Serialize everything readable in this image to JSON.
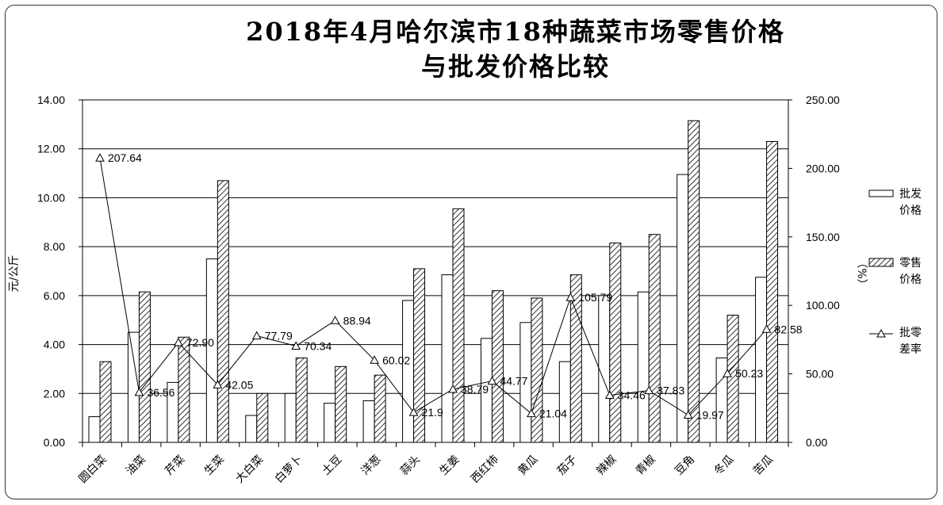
{
  "chart_data": {
    "type": "bar",
    "title": "2018年4月哈尔滨市18种蔬菜市场零售价格与批发价格比较",
    "title_lines": [
      "2018年4月哈尔滨市18种蔬菜市场零售价格",
      "与批发价格比较"
    ],
    "ylabel": "元/公斤",
    "y2label": "（%）",
    "ylim": [
      0,
      14
    ],
    "y2lim": [
      0,
      250
    ],
    "yticks": [
      "14.00",
      "12.00",
      "10.00",
      "8.00",
      "6.00",
      "4.00",
      "2.00",
      "0.00"
    ],
    "y2ticks": [
      "250.00",
      "200.00",
      "150.00",
      "100.00",
      "50.00",
      "0.00"
    ],
    "grid": "horizontal",
    "legend_position": "right",
    "categories": [
      "圆白菜",
      "油菜",
      "芹菜",
      "生菜",
      "大白菜",
      "白萝卜",
      "土豆",
      "洋葱",
      "蒜头",
      "生姜",
      "西红柿",
      "黄瓜",
      "茄子",
      "辣椒",
      "青椒",
      "豆角",
      "冬瓜",
      "苦瓜"
    ],
    "series": [
      {
        "name": "批发价格",
        "name_lines": [
          "批发",
          "价格"
        ],
        "axis": "left",
        "kind": "bar",
        "pattern": "plain",
        "values": [
          1.05,
          4.5,
          2.45,
          7.5,
          1.1,
          2.0,
          1.6,
          1.7,
          5.8,
          6.85,
          4.25,
          4.9,
          3.3,
          6.0,
          6.15,
          10.95,
          3.45,
          6.75
        ]
      },
      {
        "name": "零售价格",
        "name_lines": [
          "零售",
          "价格"
        ],
        "axis": "left",
        "kind": "bar",
        "pattern": "hatch",
        "values": [
          3.3,
          6.15,
          4.3,
          10.7,
          2.0,
          3.45,
          3.1,
          2.75,
          7.1,
          9.55,
          6.2,
          5.9,
          6.85,
          8.15,
          8.5,
          13.15,
          5.2,
          12.3
        ]
      },
      {
        "name": "批零差率",
        "name_lines": [
          "批零",
          "差率"
        ],
        "axis": "right",
        "kind": "line",
        "marker": "triangle",
        "values": [
          207.64,
          36.56,
          72.9,
          42.05,
          77.79,
          70.34,
          88.94,
          60.02,
          21.9,
          38.79,
          44.77,
          21.04,
          105.79,
          34.46,
          37.83,
          19.97,
          50.23,
          82.58
        ],
        "labels": [
          "207.64",
          "36.56",
          "72.90",
          "42.05",
          "77.79",
          "70.34",
          "88.94",
          "60.02",
          "21.9",
          "38.79",
          "44.77",
          "21.04",
          "105.79",
          "34.46",
          "37.83",
          "19.97",
          "50.23",
          "82.58"
        ]
      }
    ]
  }
}
